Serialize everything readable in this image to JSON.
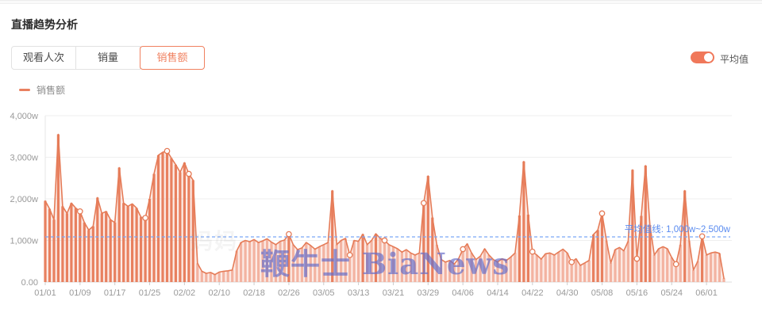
{
  "header": {
    "title": "直播趋势分析"
  },
  "tabs": [
    {
      "label": "观看人次",
      "active": false
    },
    {
      "label": "销量",
      "active": false
    },
    {
      "label": "销售额",
      "active": true
    }
  ],
  "toggle": {
    "label": "平均值",
    "on": true
  },
  "legend": {
    "label": "销售额"
  },
  "watermark": {
    "main": "鞭牛士 BiaNews",
    "faint": "妈妈"
  },
  "chart_data": {
    "type": "area",
    "series_name": "销售额",
    "unit": "w",
    "start_date": "01/01",
    "frequency": "daily",
    "ylim": [
      0,
      4000
    ],
    "grid": true,
    "y_ticks": [
      {
        "value": 0,
        "label": "0.00"
      },
      {
        "value": 1000,
        "label": "1,000w"
      },
      {
        "value": 2000,
        "label": "2,000w"
      },
      {
        "value": 3000,
        "label": "3,000w"
      },
      {
        "value": 4000,
        "label": "4,000w"
      }
    ],
    "x_tick_labels": [
      "01/01",
      "01/09",
      "01/17",
      "01/25",
      "02/02",
      "02/10",
      "02/18",
      "02/26",
      "03/05",
      "03/13",
      "03/21",
      "03/29",
      "04/06",
      "04/14",
      "04/22",
      "04/30",
      "05/08",
      "05/16",
      "05/24",
      "06/01"
    ],
    "x_tick_indices": [
      0,
      8,
      16,
      24,
      32,
      40,
      48,
      56,
      64,
      72,
      80,
      88,
      96,
      104,
      112,
      120,
      128,
      136,
      144,
      152
    ],
    "values": [
      1950,
      1760,
      1500,
      3550,
      1820,
      1650,
      1900,
      1780,
      1700,
      1430,
      1250,
      1340,
      2030,
      1650,
      1700,
      1500,
      1430,
      2750,
      1900,
      1820,
      1880,
      1780,
      1560,
      1540,
      2000,
      2600,
      3050,
      3120,
      3150,
      2980,
      2820,
      2640,
      2870,
      2600,
      2450,
      450,
      260,
      210,
      230,
      180,
      240,
      260,
      270,
      290,
      750,
      950,
      1000,
      970,
      1020,
      950,
      990,
      1040,
      960,
      900,
      980,
      1010,
      1150,
      900,
      780,
      820,
      950,
      880,
      790,
      850,
      900,
      950,
      2200,
      900,
      1000,
      1050,
      650,
      1000,
      980,
      1150,
      900,
      1000,
      1160,
      1050,
      1000,
      900,
      850,
      800,
      720,
      780,
      700,
      650,
      700,
      1900,
      2550,
      1550,
      900,
      540,
      480,
      520,
      430,
      560,
      790,
      920,
      700,
      540,
      620,
      800,
      650,
      540,
      480,
      560,
      520,
      600,
      700,
      1600,
      2900,
      1620,
      730,
      650,
      550,
      680,
      700,
      650,
      720,
      790,
      700,
      480,
      560,
      400,
      460,
      520,
      1140,
      1250,
      1650,
      1000,
      460,
      780,
      830,
      750,
      980,
      2700,
      560,
      1590,
      2800,
      1370,
      650,
      800,
      850,
      800,
      590,
      430,
      900,
      2200,
      1000,
      290,
      500,
      1100,
      650,
      700,
      720,
      690,
      90
    ],
    "marker_indices": [
      8,
      23,
      28,
      33,
      56,
      70,
      78,
      87,
      96,
      112,
      121,
      128,
      136,
      145,
      151
    ],
    "average_line": {
      "value": 1086,
      "label": "平均值线: 1,000w~2,500w"
    },
    "colors": {
      "line": "#e57b57",
      "bar_high": "#e8805f",
      "bar_low": "#f3b3a1",
      "area_fill": "rgba(235,132,102,0.16)",
      "avg_line": "#7aa6f8",
      "avg_text": "#5b8cf0",
      "axis_text": "#999999",
      "grid_line": "#efefef",
      "accent": "#f08160"
    }
  }
}
